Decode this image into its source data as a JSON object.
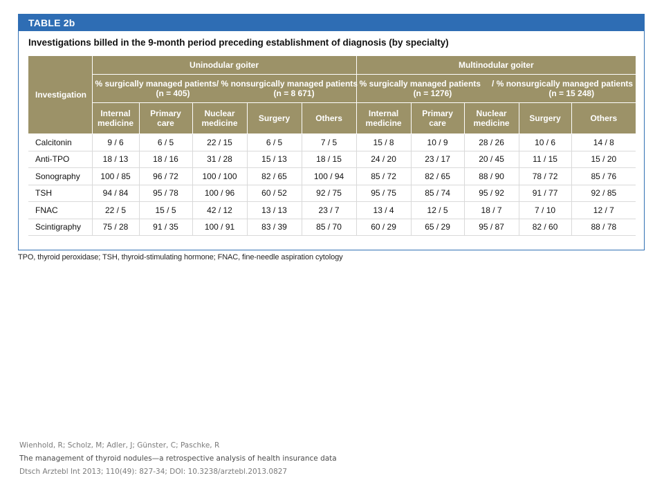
{
  "table": {
    "label": "TABLE 2b",
    "title": "Investigations billed in the 9-month period preceding establishment of diagnosis (by specialty)",
    "investigation_header": "Investigation",
    "groups": [
      {
        "name": "Uninodular goiter",
        "sub_left": "% surgically managed patients",
        "sub_left_n": "(n = 405)",
        "sub_right": "/ % nonsurgically managed patients",
        "sub_right_n": "(n = 8 671)"
      },
      {
        "name": "Multinodular goiter",
        "sub_left": "% surgically managed patients",
        "sub_left_n": "(n = 1276)",
        "sub_right": "/ % nonsurgically managed patients",
        "sub_right_n": "(n = 15 248)"
      }
    ],
    "specialties": [
      [
        "Internal",
        "medicine"
      ],
      [
        "Primary",
        "care"
      ],
      [
        "Nuclear",
        "medicine"
      ],
      [
        "Surgery",
        ""
      ],
      [
        "Others",
        ""
      ],
      [
        "Internal",
        "medicine"
      ],
      [
        "Primary",
        "care"
      ],
      [
        "Nuclear",
        "medicine"
      ],
      [
        "Surgery",
        ""
      ],
      [
        "Others",
        ""
      ]
    ],
    "rows": [
      {
        "label": "Calcitonin",
        "values": [
          "9 / 6",
          "6 / 5",
          "22 / 15",
          "6 / 5",
          "7 / 5",
          "15 / 8",
          "10 / 9",
          "28 / 26",
          "10 / 6",
          "14 / 8"
        ]
      },
      {
        "label": "Anti-TPO",
        "values": [
          "18 / 13",
          "18 / 16",
          "31 / 28",
          "15 / 13",
          "18 / 15",
          "24 / 20",
          "23 / 17",
          "20 / 45",
          "11 / 15",
          "15 / 20"
        ]
      },
      {
        "label": "Sonography",
        "values": [
          "100 / 85",
          "96 / 72",
          "100 / 100",
          "82 / 65",
          "100 / 94",
          "85 / 72",
          "82 / 65",
          "88 / 90",
          "78 / 72",
          "85 / 76"
        ]
      },
      {
        "label": "TSH",
        "values": [
          "94 / 84",
          "95 / 78",
          "100 / 96",
          "60 / 52",
          "92 / 75",
          "95 / 75",
          "85 / 74",
          "95 / 92",
          "91 / 77",
          "92 / 85"
        ]
      },
      {
        "label": "FNAC",
        "values": [
          "22 / 5",
          "15 / 5",
          "42 / 12",
          "13 / 13",
          "23 / 7",
          "13 / 4",
          "12 / 5",
          "18 / 7",
          "7 / 10",
          "12 / 7"
        ]
      },
      {
        "label": "Scintigraphy",
        "values": [
          "75 / 28",
          "91 / 35",
          "100 / 91",
          "83 / 39",
          "85 / 70",
          "60 / 29",
          "65 / 29",
          "95 / 87",
          "82 / 60",
          "88 / 78"
        ]
      }
    ],
    "footnote": "TPO, thyroid peroxidase; TSH, thyroid-stimulating hormone; FNAC, fine-needle aspiration cytology"
  },
  "citation": {
    "authors": "Wienhold, R; Scholz, M; Adler, J; Günster, C; Paschke, R",
    "title": "The management of thyroid nodules—a retrospective analysis of health insurance data",
    "source": "Dtsch Arztebl Int 2013; 110(49): 827-34; DOI: 10.3238/arztebl.2013.0827"
  },
  "colors": {
    "header_blue": "#2e6db4",
    "table_header_khaki": "#9c9268"
  }
}
